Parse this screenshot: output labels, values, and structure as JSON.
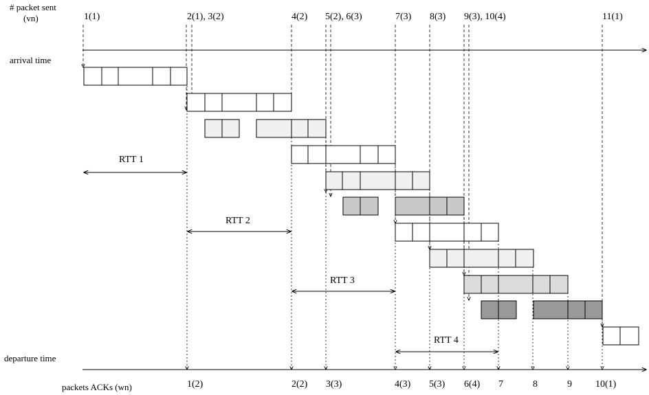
{
  "header": {
    "packet_sent_label_line1": "# packet sent",
    "packet_sent_label_line2": "(vn)",
    "arrival_time_label": "arrival time",
    "departure_time_label": "departure time",
    "acks_label": "packets ACKs (wn)"
  },
  "sent_labels": [
    "1(1)",
    "2(1), 3(2)",
    "4(2)",
    "5(2), 6(3)",
    "7(3)",
    "8(3)",
    "9(3), 10(4)",
    "11(1)"
  ],
  "ack_labels": [
    "1(2)",
    "2(2)",
    "3(3)",
    "4(3)",
    "5(3)",
    "6(4)",
    "7",
    "8",
    "9",
    "10(1)"
  ],
  "rtt_labels": [
    "RTT 1",
    "RTT 2",
    "RTT 3",
    "RTT 4"
  ],
  "colors": {
    "white_fill": "#ffffff",
    "light_fill": "#f0f0f0",
    "mid_fill": "#c8c8c8",
    "dark_fill": "#999999",
    "line": "#000000"
  }
}
